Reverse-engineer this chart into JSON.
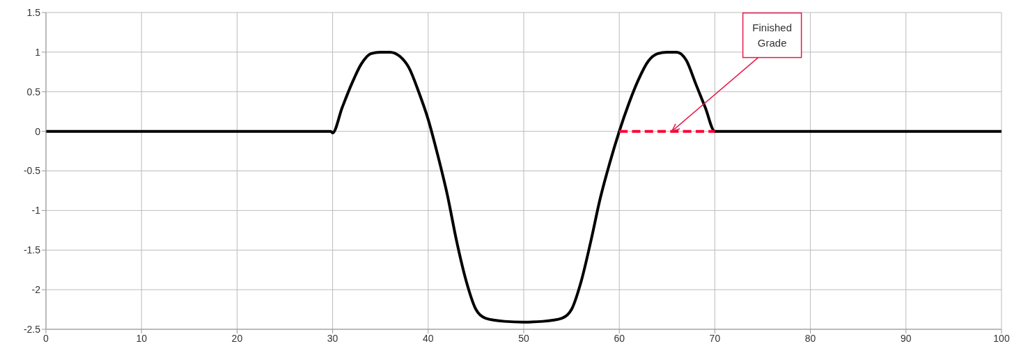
{
  "chart_data": {
    "type": "line",
    "xlim": [
      0,
      100
    ],
    "xticks": [
      0,
      10,
      20,
      30,
      40,
      50,
      60,
      70,
      80,
      90,
      100
    ],
    "ylim": [
      -2.5,
      1.5
    ],
    "yticks": [
      -2.5,
      -2,
      -1.5,
      -1,
      -0.5,
      0,
      0.5,
      1,
      1.5
    ],
    "grid": true,
    "legend": false,
    "marker": "none",
    "series": [
      {
        "color": "#000000",
        "line_style": "solid",
        "x": [
          0,
          29.8,
          30,
          31,
          32,
          33,
          34,
          35,
          36,
          37,
          38,
          39,
          40,
          41,
          42,
          43,
          44,
          45,
          46,
          48,
          50,
          52,
          54,
          55,
          56,
          57,
          58,
          59,
          60,
          61,
          62,
          63,
          64,
          65,
          66,
          67,
          68,
          69,
          70,
          100
        ],
        "values": [
          0,
          0,
          -0.02,
          0.3,
          0.6,
          0.85,
          0.98,
          1,
          1,
          0.95,
          0.8,
          0.5,
          0.15,
          -0.3,
          -0.8,
          -1.4,
          -1.9,
          -2.25,
          -2.36,
          -2.4,
          -2.41,
          -2.4,
          -2.36,
          -2.25,
          -1.9,
          -1.4,
          -0.85,
          -0.4,
          0,
          0.35,
          0.65,
          0.88,
          0.98,
          1,
          1,
          0.9,
          0.6,
          0.3,
          0,
          0
        ]
      },
      {
        "color": "#ff0033",
        "line_style": "dashed",
        "x": [
          60,
          70
        ],
        "values": [
          0,
          0
        ]
      }
    ],
    "annotations": [
      {
        "text": "Finished Grade",
        "x": 65.5,
        "y": 0
      }
    ]
  }
}
